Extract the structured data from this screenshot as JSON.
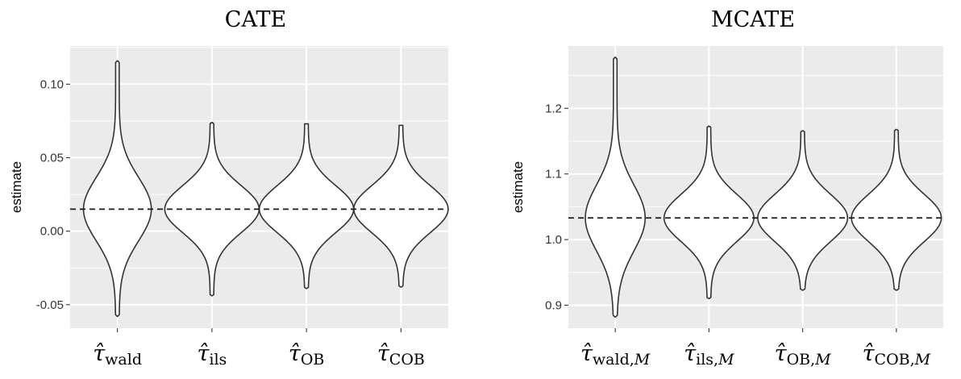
{
  "chart_data": [
    {
      "type": "violin",
      "title": "CATE",
      "xlabel": "",
      "ylabel": "estimate",
      "ylim": [
        -0.066,
        0.126
      ],
      "yticks": [
        -0.05,
        0.0,
        0.05,
        0.1
      ],
      "ytick_labels": [
        "-0.05",
        "0.00",
        "0.05",
        "0.10"
      ],
      "reference_line": 0.015,
      "categories": [
        {
          "symbol": "τ̂",
          "sub": "wald",
          "sub_suffix": ""
        },
        {
          "symbol": "τ̂",
          "sub": "ils",
          "sub_suffix": ""
        },
        {
          "symbol": "τ̂",
          "sub": "OB",
          "sub_suffix": ""
        },
        {
          "symbol": "τ̂",
          "sub": "COB",
          "sub_suffix": ""
        }
      ],
      "series": [
        {
          "name": "wald",
          "min": -0.058,
          "max": 0.116,
          "center": 0.015,
          "sd": 0.0215,
          "max_halfwidth": 0.34
        },
        {
          "name": "ils",
          "min": -0.044,
          "max": 0.074,
          "center": 0.015,
          "sd": 0.016,
          "max_halfwidth": 0.48
        },
        {
          "name": "OB",
          "min": -0.039,
          "max": 0.073,
          "center": 0.015,
          "sd": 0.016,
          "max_halfwidth": 0.48
        },
        {
          "name": "COB",
          "min": -0.038,
          "max": 0.072,
          "center": 0.015,
          "sd": 0.016,
          "max_halfwidth": 0.48
        }
      ]
    },
    {
      "type": "violin",
      "title": "MCATE",
      "xlabel": "",
      "ylabel": "estimate",
      "ylim": [
        0.865,
        1.295
      ],
      "yticks": [
        0.9,
        1.0,
        1.1,
        1.2
      ],
      "ytick_labels": [
        "0.9",
        "1.0",
        "1.1",
        "1.2"
      ],
      "reference_line": 1.033,
      "categories": [
        {
          "symbol": "τ̂",
          "sub": "wald,",
          "sub_suffix": "M"
        },
        {
          "symbol": "τ̂",
          "sub": "ils,",
          "sub_suffix": "M"
        },
        {
          "symbol": "τ̂",
          "sub": "OB,",
          "sub_suffix": "M"
        },
        {
          "symbol": "τ̂",
          "sub": "COB,",
          "sub_suffix": "M"
        }
      ],
      "series": [
        {
          "name": "wald,M",
          "min": 0.882,
          "max": 1.278,
          "center": 1.033,
          "sd": 0.05,
          "max_halfwidth": 0.3
        },
        {
          "name": "ils,M",
          "min": 0.91,
          "max": 1.173,
          "center": 1.033,
          "sd": 0.036,
          "max_halfwidth": 0.46
        },
        {
          "name": "OB,M",
          "min": 0.923,
          "max": 1.166,
          "center": 1.033,
          "sd": 0.036,
          "max_halfwidth": 0.46
        },
        {
          "name": "COB,M",
          "min": 0.923,
          "max": 1.168,
          "center": 1.033,
          "sd": 0.036,
          "max_halfwidth": 0.46
        }
      ]
    }
  ]
}
